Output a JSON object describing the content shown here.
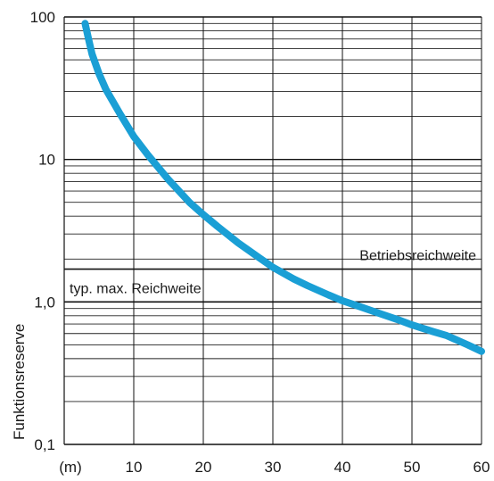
{
  "chart_data": {
    "type": "line",
    "scale_y": "log",
    "grid": true,
    "xlim": [
      0,
      60
    ],
    "ylim": [
      0.1,
      100
    ],
    "x_ticks": [
      10,
      20,
      30,
      40,
      50,
      60
    ],
    "x_tick_labels": [
      "10",
      "20",
      "30",
      "40",
      "50",
      "60"
    ],
    "x_unit_label": "(m)",
    "y_ticks": [
      0.1,
      1,
      10,
      100
    ],
    "y_tick_labels": [
      "0,1",
      "1,0",
      "10",
      "100"
    ],
    "ylabel": "Funktionsreserve",
    "line_color": "#1a9fd5",
    "series": [
      {
        "x": [
          3,
          3.5,
          4,
          5,
          6,
          7,
          8,
          10,
          12,
          15,
          18,
          20,
          22,
          25,
          28,
          30,
          33,
          35,
          38,
          40,
          43,
          45,
          48,
          50,
          53,
          55,
          58,
          60
        ],
        "y": [
          90,
          70,
          55,
          40,
          31,
          25.5,
          21,
          14.5,
          10.8,
          7.2,
          5.0,
          4.1,
          3.4,
          2.6,
          2.05,
          1.75,
          1.45,
          1.3,
          1.12,
          1.02,
          0.91,
          0.84,
          0.75,
          0.69,
          0.62,
          0.58,
          0.5,
          0.45
        ]
      }
    ],
    "reference_lines": [
      {
        "label": "Betriebsreichweite",
        "y": 1.7
      },
      {
        "label": "typ. max. Reichweite",
        "y": 1.0
      }
    ]
  }
}
